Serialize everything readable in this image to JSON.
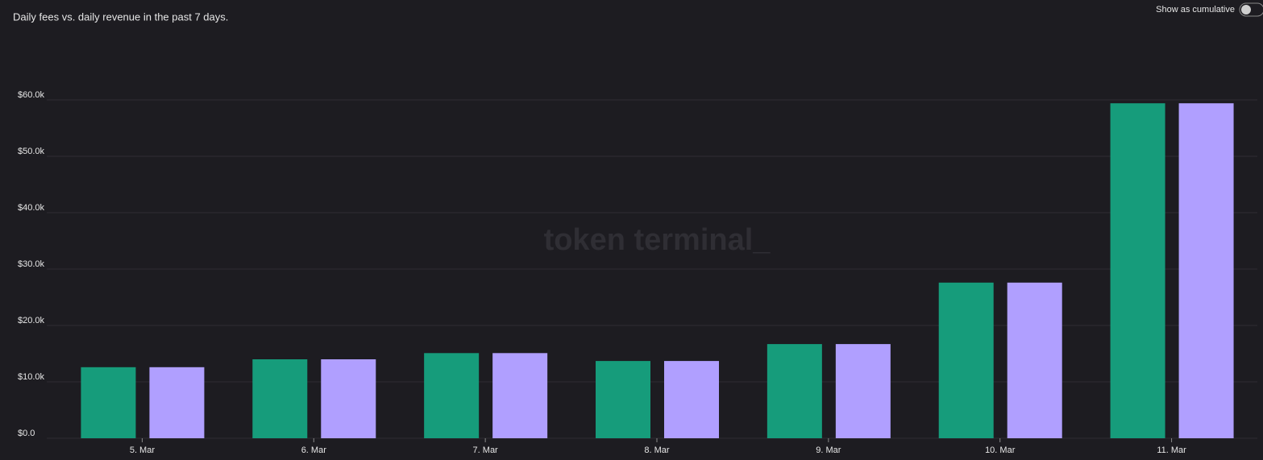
{
  "chart_data": {
    "type": "bar",
    "title": "Daily fees vs. daily revenue in the past 7 days.",
    "toggle_label": "Show as cumulative",
    "watermark": "token terminal_",
    "categories": [
      "5. Mar",
      "6. Mar",
      "7. Mar",
      "8. Mar",
      "9. Mar",
      "10. Mar",
      "11. Mar"
    ],
    "series": [
      {
        "color": "#169c7b",
        "values": [
          12600,
          14000,
          15100,
          13700,
          16700,
          27600,
          59400
        ]
      },
      {
        "color": "#b09fff",
        "values": [
          12600,
          14000,
          15100,
          13700,
          16700,
          27600,
          59400
        ]
      }
    ],
    "ylim": [
      0,
      60000
    ],
    "yticks": [
      {
        "value": 0,
        "label": "$0.0"
      },
      {
        "value": 10000,
        "label": "$10.0k"
      },
      {
        "value": 20000,
        "label": "$20.0k"
      },
      {
        "value": 30000,
        "label": "$30.0k"
      },
      {
        "value": 40000,
        "label": "$40.0k"
      },
      {
        "value": 50000,
        "label": "$50.0k"
      },
      {
        "value": 60000,
        "label": "$60.0k"
      }
    ],
    "grid": true
  }
}
